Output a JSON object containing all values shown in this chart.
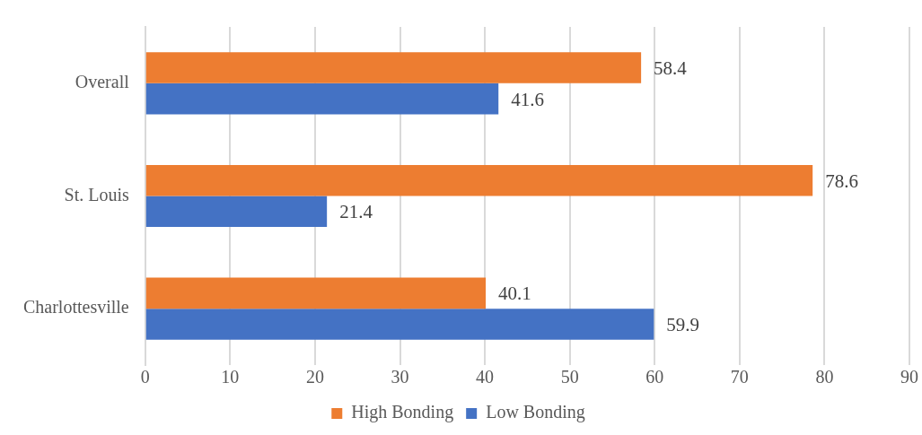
{
  "chart_data": {
    "type": "bar",
    "orientation": "horizontal",
    "categories": [
      "Overall",
      "St. Louis",
      "Charlottesville"
    ],
    "series": [
      {
        "name": "High Bonding",
        "color": "#ed7d31",
        "values": [
          58.4,
          78.6,
          40.1
        ]
      },
      {
        "name": "Low Bonding",
        "color": "#4472c4",
        "values": [
          41.6,
          21.4,
          59.9
        ]
      }
    ],
    "xlim": [
      0,
      90
    ],
    "xticks": [
      0,
      10,
      20,
      30,
      40,
      50,
      60,
      70,
      80,
      90
    ],
    "grid": "x",
    "legend": "bottom",
    "data_labels": true
  }
}
